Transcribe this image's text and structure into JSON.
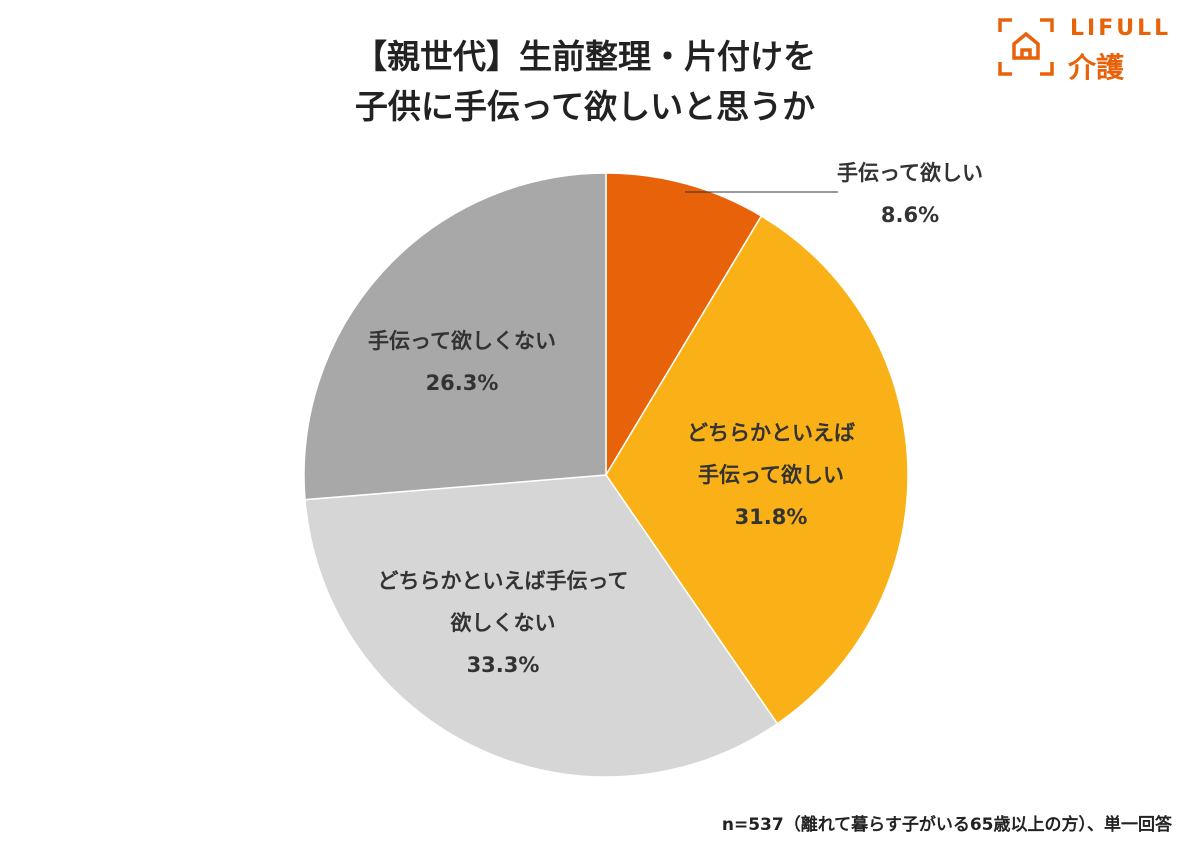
{
  "chart_data": {
    "type": "pie",
    "title": [
      "【親世代】生前整理・片付けを",
      "子供に手伝って欲しいと思うか"
    ],
    "categories": [
      "手伝って欲しい",
      "どちらかといえば\n手伝って欲しい",
      "どちらかといえば手伝って\n欲しくない",
      "手伝って欲しくない"
    ],
    "values": [
      8.6,
      31.8,
      33.3,
      26.3
    ],
    "value_labels": [
      "8.6%",
      "31.8%",
      "33.3%",
      "26.3%"
    ],
    "colors": [
      "#e8620a",
      "#f9b117",
      "#d6d6d6",
      "#a8a8a8"
    ],
    "note": "n=537（離れて暮らす子がいる65歳以上の方）、単一回答"
  },
  "logo": {
    "brand": "LIFULL",
    "service": "介護"
  }
}
